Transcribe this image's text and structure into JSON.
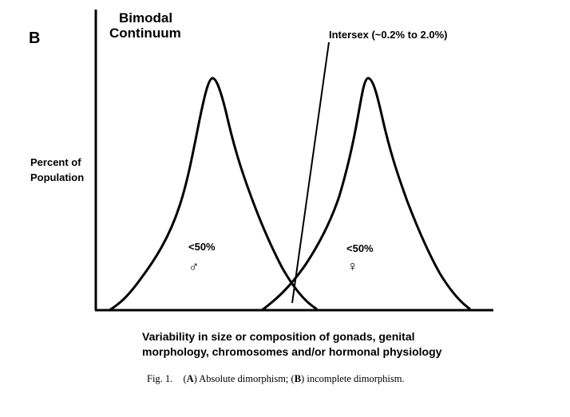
{
  "panel_label": "B",
  "chart_data": {
    "type": "line",
    "title": [
      "Bimodal",
      "Continuum"
    ],
    "ylabel": [
      "Percent of",
      "Population"
    ],
    "xlabel": [
      "Variability in size or composition of gonads, genital",
      "morphology, chromosomes and/or hormonal physiology"
    ],
    "axis_ticks": false,
    "grid": false,
    "series": [
      {
        "percent_label": "<50%",
        "symbol": "♂"
      },
      {
        "percent_label": "<50%",
        "symbol": "♀"
      }
    ],
    "annotations": [
      {
        "text": "Intersex (~0.2% to 2.0%)",
        "points_to": "overlap"
      }
    ]
  },
  "caption": {
    "prefix": "Fig. 1.",
    "part_a_letter": "A",
    "part_a_text": "Absolute dimorphism;",
    "part_b_letter": "B",
    "part_b_text": "incomplete dimorphism."
  }
}
